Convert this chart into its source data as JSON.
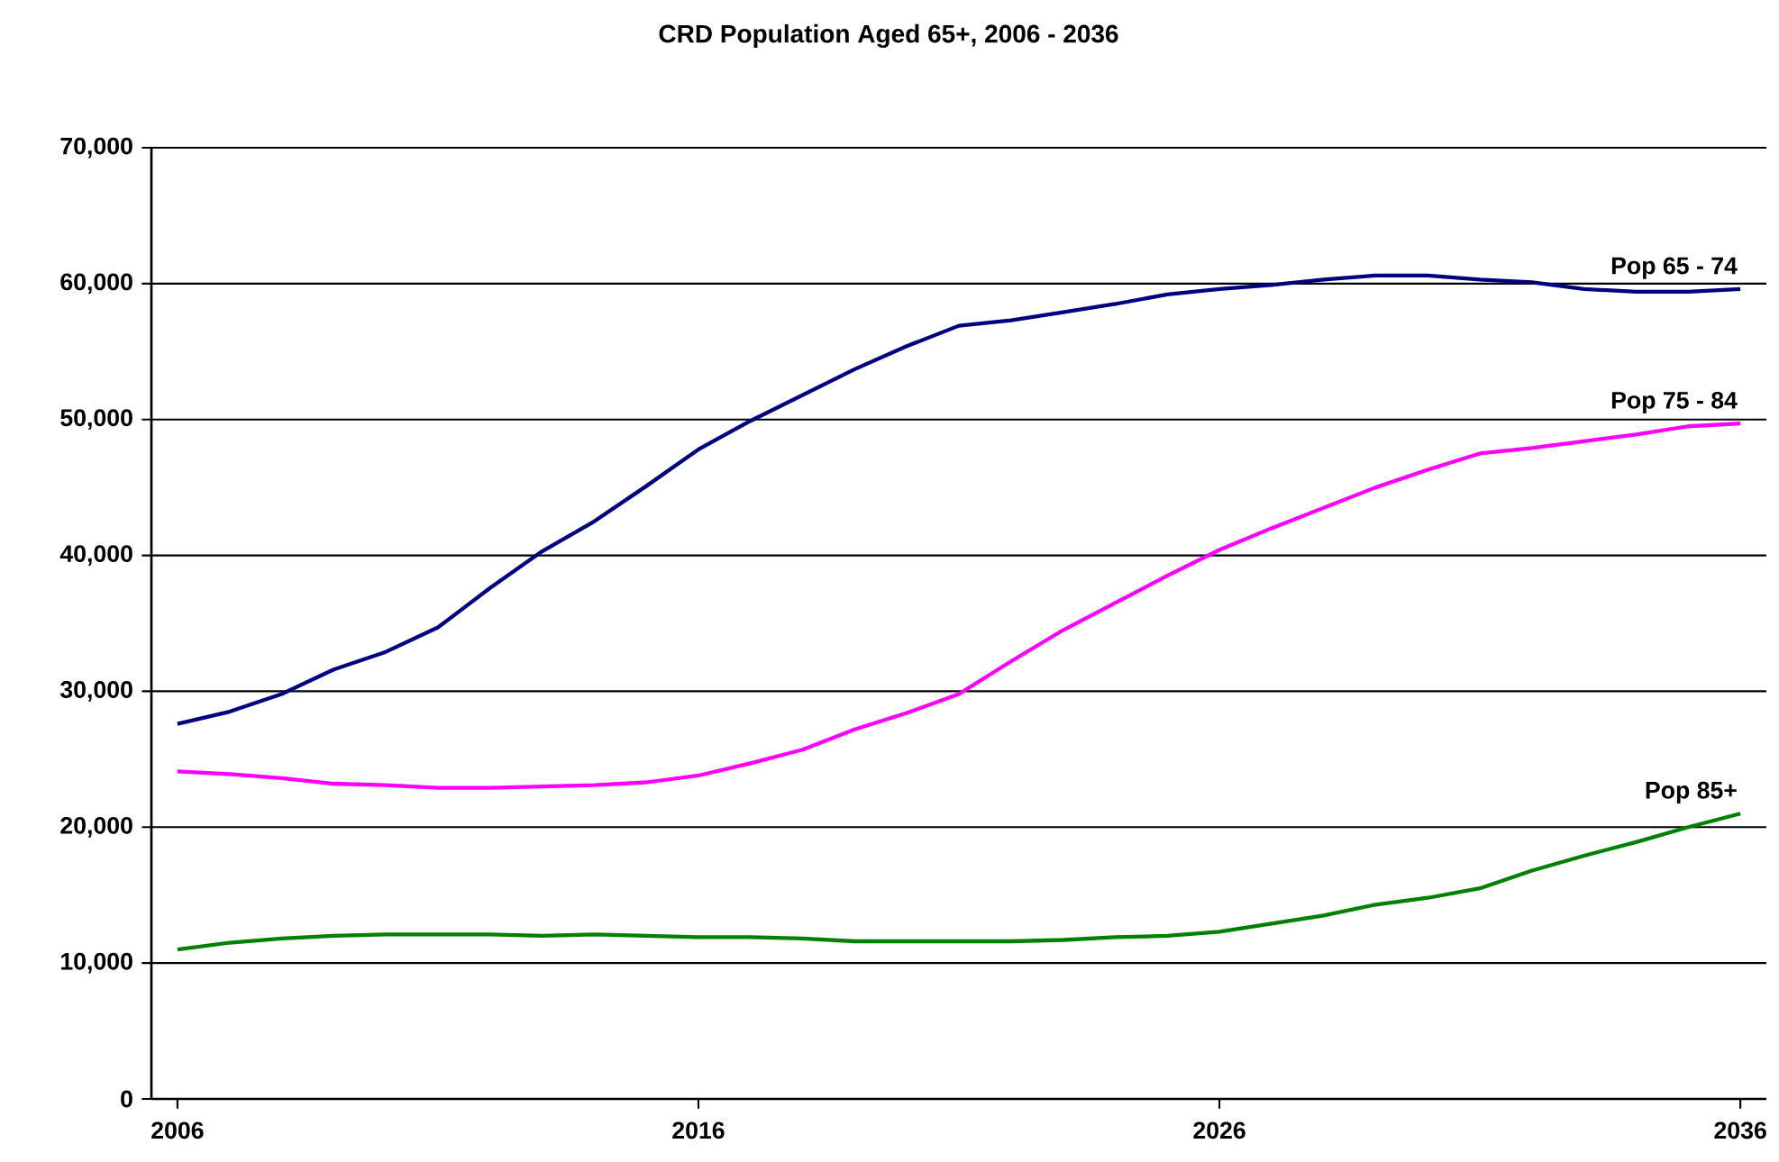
{
  "chart_data": {
    "type": "line",
    "title": "CRD Population Aged 65+, 2006 - 2036",
    "x": [
      2006,
      2007,
      2008,
      2009,
      2010,
      2011,
      2012,
      2013,
      2014,
      2015,
      2016,
      2017,
      2018,
      2019,
      2020,
      2021,
      2022,
      2023,
      2024,
      2025,
      2026,
      2027,
      2028,
      2029,
      2030,
      2031,
      2032,
      2033,
      2034,
      2035,
      2036
    ],
    "xlim": [
      2005.5,
      2036.5
    ],
    "xticks": [
      2006,
      2016,
      2026,
      2036
    ],
    "ylim": [
      0,
      70000
    ],
    "yticks": [
      {
        "value": 0,
        "label": "0"
      },
      {
        "value": 10000,
        "label": "10,000"
      },
      {
        "value": 20000,
        "label": "20,000"
      },
      {
        "value": 30000,
        "label": "30,000"
      },
      {
        "value": 40000,
        "label": "40,000"
      },
      {
        "value": 50000,
        "label": "50,000"
      },
      {
        "value": 60000,
        "label": "60,000"
      },
      {
        "value": 70000,
        "label": "70,000"
      }
    ],
    "grid": "y",
    "marker": "none",
    "line_style": "solid",
    "series": [
      {
        "name": "Pop 65 - 74",
        "color": "#000080",
        "values": [
          27600,
          28500,
          29800,
          31600,
          32900,
          34700,
          37600,
          40300,
          42500,
          45100,
          47800,
          49900,
          51800,
          53700,
          55400,
          56900,
          57300,
          57900,
          58500,
          59200,
          59600,
          59900,
          60300,
          60600,
          60600,
          60300,
          60100,
          59600,
          59400,
          59400,
          59600
        ]
      },
      {
        "name": "Pop 75 - 84",
        "color": "#ff00ff",
        "values": [
          24100,
          23900,
          23600,
          23200,
          23100,
          22900,
          22900,
          23000,
          23100,
          23300,
          23800,
          24700,
          25700,
          27200,
          28400,
          29800,
          32200,
          34500,
          36500,
          38500,
          40400,
          42000,
          43500,
          45000,
          46300,
          47500,
          47900,
          48400,
          48900,
          49500,
          49700
        ]
      },
      {
        "name": "Pop 85+",
        "color": "#008000",
        "values": [
          11000,
          11500,
          11800,
          12000,
          12100,
          12100,
          12100,
          12000,
          12100,
          12000,
          11900,
          11900,
          11800,
          11600,
          11600,
          11600,
          11600,
          11700,
          11900,
          12000,
          12300,
          12900,
          13500,
          14300,
          14800,
          15500,
          16800,
          17900,
          18900,
          20000,
          21000
        ]
      }
    ]
  }
}
